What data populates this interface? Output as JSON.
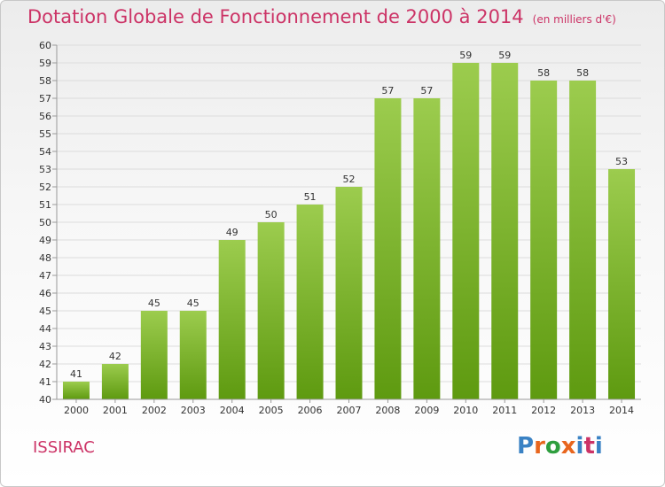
{
  "header": {
    "title": "Dotation Globale de Fonctionnement de 2000 à 2014",
    "unit": "(en milliers d'€)"
  },
  "footer": {
    "place": "ISSIRAC",
    "logo": "Proxiti",
    "logo_colors": [
      "#3a82c4",
      "#e8661e",
      "#2e9e3e",
      "#e8661e",
      "#3a82c4",
      "#cc3366",
      "#3a82c4"
    ]
  },
  "chart_data": {
    "type": "bar",
    "title": "Dotation Globale de Fonctionnement de 2000 à 2014",
    "xlabel": "",
    "ylabel": "(en milliers d'€)",
    "categories": [
      "2000",
      "2001",
      "2002",
      "2003",
      "2004",
      "2005",
      "2006",
      "2007",
      "2008",
      "2009",
      "2010",
      "2011",
      "2012",
      "2013",
      "2014"
    ],
    "values": [
      41,
      42,
      45,
      45,
      49,
      50,
      51,
      52,
      57,
      57,
      59,
      59,
      58,
      58,
      53
    ],
    "ylim": [
      40,
      60
    ],
    "yticks": [
      40,
      41,
      42,
      43,
      44,
      45,
      46,
      47,
      48,
      49,
      50,
      51,
      52,
      53,
      54,
      55,
      56,
      57,
      58,
      59,
      60
    ],
    "grid": true,
    "colors": {
      "bar_top": "#9ccc4e",
      "bar_bottom": "#5e9a10",
      "title": "#cc3366",
      "text": "#333333",
      "grid": "#dcdcdc"
    }
  }
}
